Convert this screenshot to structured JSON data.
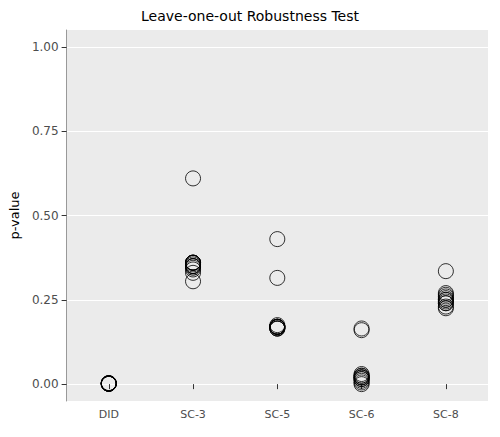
{
  "chart_data": {
    "type": "scatter",
    "title": "Leave-one-out Robustness Test",
    "y_label": "p-value",
    "categories": [
      "DID",
      "SC-3",
      "SC-5",
      "SC-6",
      "SC-8"
    ],
    "values": [
      [
        0.002,
        0.001,
        0.003,
        0.002,
        0.001,
        0.002,
        0.003,
        0.001,
        0.002,
        0.001
      ],
      [
        0.61,
        0.36,
        0.35,
        0.36,
        0.36,
        0.35,
        0.36,
        0.34,
        0.35,
        0.36,
        0.305,
        0.355,
        0.33,
        0.345
      ],
      [
        0.43,
        0.315,
        0.17,
        0.165,
        0.17,
        0.17,
        0.165,
        0.17,
        0.17,
        0.165,
        0.17,
        0.175
      ],
      [
        0.16,
        0.165,
        0.02,
        0.025,
        0.01,
        0.015,
        0.02,
        0.03,
        0.005,
        0.02,
        0.015,
        0.025,
        0.0
      ],
      [
        0.335,
        0.25,
        0.24,
        0.245,
        0.27,
        0.26,
        0.23,
        0.25,
        0.24,
        0.225,
        0.255,
        0.265
      ]
    ],
    "color": "#000000",
    "marker": "open_circle",
    "ylim": [
      -0.05,
      1.05
    ],
    "yticks": [
      {
        "value": 0,
        "label": "0.00"
      },
      {
        "value": 0.25,
        "label": "0.25"
      },
      {
        "value": 0.5,
        "label": "0.50"
      },
      {
        "value": 0.75,
        "label": "0.75"
      },
      {
        "value": 1,
        "label": "1.00"
      }
    ],
    "grid": true
  }
}
